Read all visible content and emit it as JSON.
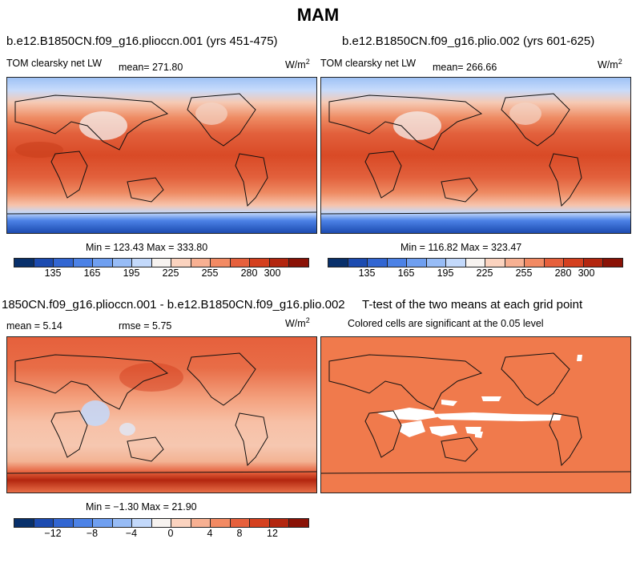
{
  "figure": {
    "title": "MAM"
  },
  "chart_data": [
    {
      "type": "heatmap",
      "title": "b.e12.B1850CN.f09_g16.plioccn.001 (yrs 451-475)",
      "variable": "TOM clearsky net LW",
      "mean_label": "mean= 271.80",
      "units_prefix": "W/m",
      "units_exp": "2",
      "stats": "Min = 123.43 Max = 333.80",
      "min": 123.43,
      "max": 333.8,
      "mean": 271.8,
      "colorbar_ticks": [
        "135",
        "165",
        "195",
        "225",
        "255",
        "280",
        "300"
      ]
    },
    {
      "type": "heatmap",
      "title": "b.e12.B1850CN.f09_g16.plio.002 (yrs 601-625)",
      "variable": "TOM clearsky net LW",
      "mean_label": "mean= 266.66",
      "units_prefix": "W/m",
      "units_exp": "2",
      "stats": "Min = 116.82 Max = 323.47",
      "min": 116.82,
      "max": 323.47,
      "mean": 266.66,
      "colorbar_ticks": [
        "135",
        "165",
        "195",
        "225",
        "255",
        "280",
        "300"
      ]
    },
    {
      "type": "heatmap",
      "title": "1850CN.f09_g16.plioccn.001 - b.e12.B1850CN.f09_g16.plio.002",
      "mean_label": "mean =    5.14",
      "rmse_label": "rmse =    5.75",
      "units_prefix": "W/m",
      "units_exp": "2",
      "stats": "Min = −1.30 Max =  21.90",
      "min": -1.3,
      "max": 21.9,
      "mean": 5.14,
      "rmse": 5.75,
      "colorbar_ticks": [
        "−12",
        "−8",
        "−4",
        "0",
        "4",
        "8",
        "12"
      ]
    },
    {
      "type": "heatmap",
      "title": "T-test of the two means at each grid point",
      "subtitle": "Colored cells are significant at the 0.05 level"
    }
  ],
  "colors": {
    "scale": [
      "#08306b",
      "#1c4bb0",
      "#3266d2",
      "#4c82e6",
      "#6f9ff0",
      "#97bcf6",
      "#c3d9fb",
      "#f7f3f0",
      "#fbd3bf",
      "#f7b092",
      "#f28a63",
      "#e6603c",
      "#d4401f",
      "#b3260f",
      "#8a1206"
    ],
    "significant": "#f07a4c"
  }
}
